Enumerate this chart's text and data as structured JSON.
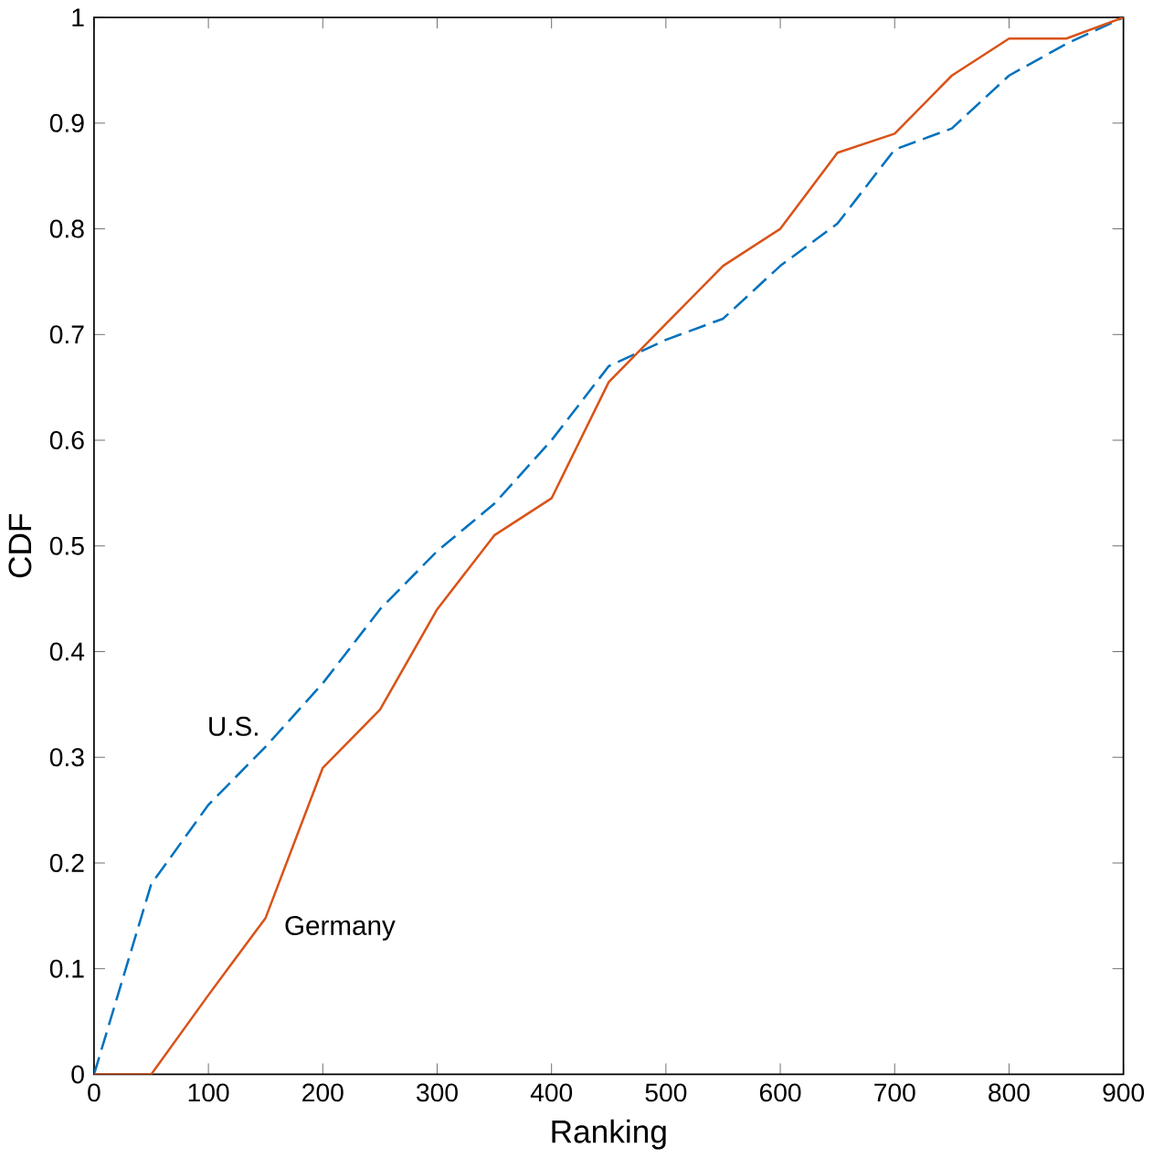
{
  "chart_data": {
    "type": "line",
    "xlabel": "Ranking",
    "ylabel": "CDF",
    "xlim": [
      0,
      900
    ],
    "ylim": [
      0,
      1
    ],
    "xticks": [
      0,
      100,
      200,
      300,
      400,
      500,
      600,
      700,
      800,
      900
    ],
    "yticks": [
      0,
      0.1,
      0.2,
      0.3,
      0.4,
      0.5,
      0.6,
      0.7,
      0.8,
      0.9,
      1
    ],
    "grid": false,
    "legend": false,
    "x": [
      0,
      50,
      100,
      150,
      200,
      250,
      300,
      350,
      400,
      450,
      500,
      550,
      600,
      650,
      700,
      750,
      800,
      850,
      900
    ],
    "series": [
      {
        "name": "U.S.",
        "color": "#0072bd",
        "line_style": "dashed",
        "values": [
          0,
          0.18,
          0.255,
          0.31,
          0.37,
          0.44,
          0.495,
          0.54,
          0.6,
          0.67,
          0.695,
          0.715,
          0.765,
          0.805,
          0.875,
          0.895,
          0.945,
          0.975,
          1
        ]
      },
      {
        "name": "Germany",
        "color": "#d95319",
        "line_style": "solid",
        "values": [
          0,
          0,
          0.075,
          0.148,
          0.29,
          0.345,
          0.44,
          0.51,
          0.545,
          0.655,
          0.71,
          0.765,
          0.8,
          0.872,
          0.89,
          0.945,
          0.98,
          0.98,
          1
        ]
      }
    ]
  }
}
